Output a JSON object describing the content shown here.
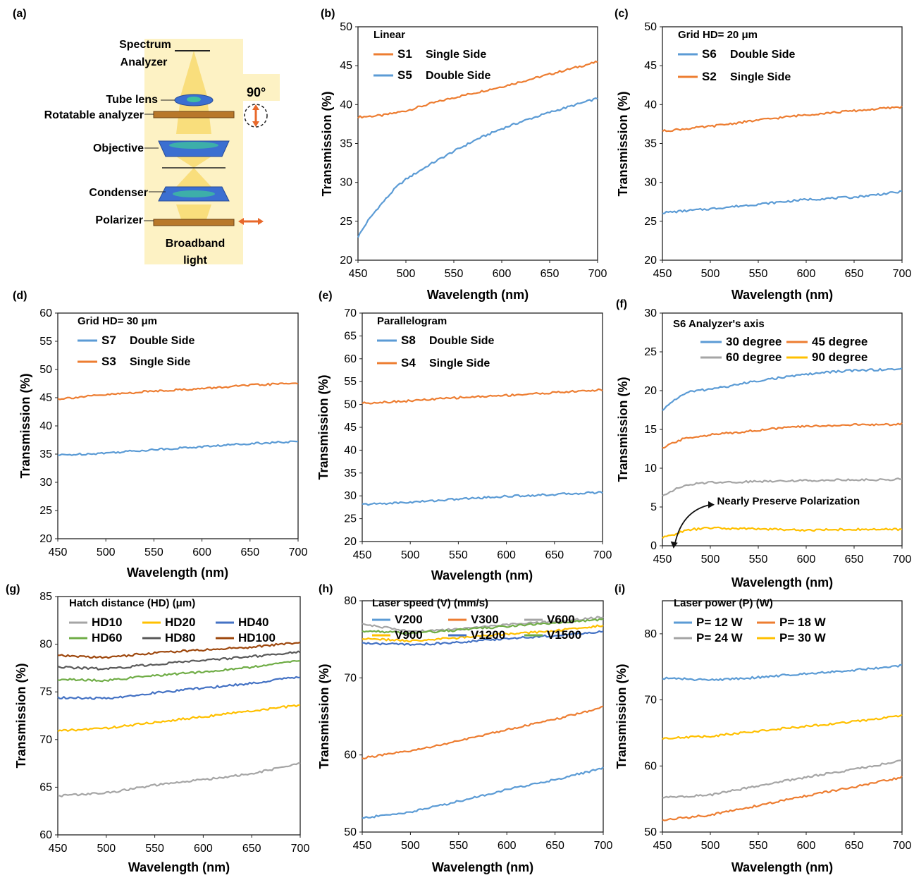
{
  "colors": {
    "blue": "#5b9bd5",
    "orange": "#ed7d31",
    "gray": "#a5a5a5",
    "yellow": "#ffc000",
    "darkblue": "#4472c4",
    "green": "#70ad47",
    "darkgray": "#595959",
    "brown": "#9e480e"
  },
  "panel_labels": [
    "(a)",
    "(b)",
    "(c)",
    "(d)",
    "(e)",
    "(f)",
    "(g)",
    "(h)",
    "(i)"
  ],
  "setup": {
    "labels": {
      "spectrum_analyzer_1": "Spectrum",
      "spectrum_analyzer_2": "Analyzer",
      "tube_lens": "Tube lens",
      "rotatable_analyzer": "Rotatable analyzer",
      "objective": "Objective",
      "condenser": "Condenser",
      "polarizer": "Polarizer",
      "light_1": "Broadband",
      "light_2": "light",
      "angle": "90°"
    },
    "icons": [
      "lens-icon",
      "double-arrow-icon",
      "horizontal-arrow-icon"
    ]
  },
  "chart_data": [
    {
      "panel": "(b)",
      "type": "line",
      "title": "",
      "xlabel": "Wavelength (nm)",
      "ylabel": "Transmission (%)",
      "xlim": [
        450,
        700
      ],
      "ylim": [
        20,
        50
      ],
      "xticks": [
        450,
        500,
        550,
        600,
        650,
        700
      ],
      "yticks": [
        20,
        25,
        30,
        35,
        40,
        45,
        50
      ],
      "legend_title": "Linear",
      "series": [
        {
          "name": "S1",
          "desc": "Single Side",
          "color": "#ed7d31",
          "x": [
            450,
            475,
            500,
            525,
            550,
            575,
            600,
            625,
            650,
            675,
            700
          ],
          "values": [
            38.4,
            38.6,
            39.2,
            40.1,
            40.9,
            41.6,
            42.3,
            43.1,
            43.9,
            44.7,
            45.5
          ]
        },
        {
          "name": "S5",
          "desc": "Double Side",
          "color": "#5b9bd5",
          "x": [
            450,
            460,
            470,
            480,
            490,
            500,
            525,
            550,
            575,
            600,
            625,
            650,
            675,
            700
          ],
          "values": [
            23.0,
            25.0,
            26.6,
            28.0,
            29.4,
            30.4,
            32.3,
            34.0,
            35.6,
            36.9,
            38.0,
            39.0,
            39.9,
            40.8
          ]
        }
      ]
    },
    {
      "panel": "(c)",
      "type": "line",
      "title": "",
      "xlabel": "Wavelength (nm)",
      "ylabel": "Transmission (%)",
      "xlim": [
        450,
        700
      ],
      "ylim": [
        20,
        50
      ],
      "xticks": [
        450,
        500,
        550,
        600,
        650,
        700
      ],
      "yticks": [
        20,
        25,
        30,
        35,
        40,
        45,
        50
      ],
      "legend_title": "Grid HD= 20 μm",
      "series": [
        {
          "name": "S6",
          "desc": "Double Side",
          "color": "#5b9bd5",
          "x": [
            450,
            500,
            550,
            600,
            650,
            700
          ],
          "values": [
            26.1,
            26.6,
            27.2,
            27.8,
            28.1,
            28.8
          ]
        },
        {
          "name": "S2",
          "desc": "Single Side",
          "color": "#ed7d31",
          "x": [
            450,
            500,
            550,
            600,
            650,
            700
          ],
          "values": [
            36.6,
            37.2,
            38.0,
            38.7,
            39.2,
            39.7
          ]
        }
      ]
    },
    {
      "panel": "(d)",
      "type": "line",
      "title": "",
      "xlabel": "Wavelength (nm)",
      "ylabel": "Transmission (%)",
      "xlim": [
        450,
        700
      ],
      "ylim": [
        20,
        60
      ],
      "xticks": [
        450,
        500,
        550,
        600,
        650,
        700
      ],
      "yticks": [
        20,
        25,
        30,
        35,
        40,
        45,
        50,
        55,
        60
      ],
      "legend_title": "Grid HD= 30 μm",
      "series": [
        {
          "name": "S7",
          "desc": "Double Side",
          "color": "#5b9bd5",
          "x": [
            450,
            500,
            550,
            600,
            650,
            700
          ],
          "values": [
            34.8,
            35.2,
            35.8,
            36.3,
            36.9,
            37.2
          ]
        },
        {
          "name": "S3",
          "desc": "Single Side",
          "color": "#ed7d31",
          "x": [
            450,
            500,
            550,
            600,
            650,
            700
          ],
          "values": [
            44.8,
            45.5,
            46.2,
            46.6,
            47.2,
            47.6
          ]
        }
      ]
    },
    {
      "panel": "(e)",
      "type": "line",
      "title": "",
      "xlabel": "Wavelength (nm)",
      "ylabel": "Transmission (%)",
      "xlim": [
        450,
        700
      ],
      "ylim": [
        20,
        70
      ],
      "xticks": [
        450,
        500,
        550,
        600,
        650,
        700
      ],
      "yticks": [
        20,
        25,
        30,
        35,
        40,
        45,
        50,
        55,
        60,
        65,
        70
      ],
      "legend_title": "Parallelogram",
      "series": [
        {
          "name": "S8",
          "desc": "Double Side",
          "color": "#5b9bd5",
          "x": [
            450,
            500,
            550,
            600,
            650,
            700
          ],
          "values": [
            28.1,
            28.6,
            29.3,
            29.9,
            30.3,
            30.8
          ]
        },
        {
          "name": "S4",
          "desc": "Single Side",
          "color": "#ed7d31",
          "x": [
            450,
            500,
            550,
            600,
            650,
            700
          ],
          "values": [
            50.3,
            50.8,
            51.5,
            52.0,
            52.6,
            53.2
          ]
        }
      ]
    },
    {
      "panel": "(f)",
      "type": "line",
      "title": "",
      "xlabel": "Wavelength (nm)",
      "ylabel": "Transmission (%)",
      "xlim": [
        450,
        700
      ],
      "ylim": [
        0,
        30
      ],
      "xticks": [
        450,
        500,
        550,
        600,
        650,
        700
      ],
      "yticks": [
        0,
        5,
        10,
        15,
        20,
        25,
        30
      ],
      "legend_title": "S6    Analyzer's axis",
      "annotation": "Nearly Preserve Polarization",
      "series": [
        {
          "name": "30 degree",
          "color": "#5b9bd5",
          "x": [
            450,
            460,
            470,
            480,
            500,
            525,
            550,
            575,
            600,
            625,
            650,
            675,
            700
          ],
          "values": [
            17.4,
            18.6,
            19.4,
            19.9,
            20.2,
            20.7,
            21.3,
            21.7,
            22.1,
            22.4,
            22.6,
            22.7,
            22.8
          ]
        },
        {
          "name": "45 degree",
          "color": "#ed7d31",
          "x": [
            450,
            460,
            470,
            480,
            500,
            525,
            550,
            575,
            600,
            625,
            650,
            675,
            700
          ],
          "values": [
            12.5,
            13.2,
            13.7,
            14.0,
            14.3,
            14.6,
            14.9,
            15.2,
            15.4,
            15.5,
            15.6,
            15.6,
            15.7
          ]
        },
        {
          "name": "60 degree",
          "color": "#a5a5a5",
          "x": [
            450,
            460,
            470,
            480,
            500,
            525,
            550,
            575,
            600,
            625,
            650,
            675,
            700
          ],
          "values": [
            6.5,
            7.1,
            7.6,
            7.9,
            8.2,
            8.2,
            8.3,
            8.4,
            8.4,
            8.5,
            8.5,
            8.5,
            8.6
          ]
        },
        {
          "name": "90 degree",
          "color": "#ffc000",
          "x": [
            450,
            460,
            470,
            480,
            500,
            525,
            550,
            575,
            600,
            625,
            650,
            675,
            700
          ],
          "values": [
            1.0,
            1.4,
            1.8,
            2.1,
            2.3,
            2.2,
            2.2,
            2.1,
            2.0,
            2.1,
            2.1,
            2.1,
            2.1
          ]
        }
      ]
    },
    {
      "panel": "(g)",
      "type": "line",
      "title": "",
      "xlabel": "Wavelength (nm)",
      "ylabel": "Transmission (%)",
      "xlim": [
        450,
        700
      ],
      "ylim": [
        60,
        85
      ],
      "xticks": [
        450,
        500,
        550,
        600,
        650,
        700
      ],
      "yticks": [
        60,
        65,
        70,
        75,
        80,
        85
      ],
      "legend_title": "Hatch distance (HD) (μm)",
      "series": [
        {
          "name": "HD10",
          "color": "#a5a5a5",
          "x": [
            450,
            500,
            550,
            600,
            650,
            700
          ],
          "values": [
            64.1,
            64.4,
            65.2,
            65.8,
            66.4,
            67.5
          ]
        },
        {
          "name": "HD20",
          "color": "#ffc000",
          "x": [
            450,
            500,
            550,
            600,
            650,
            700
          ],
          "values": [
            70.9,
            71.2,
            71.8,
            72.4,
            73.0,
            73.6
          ]
        },
        {
          "name": "HD40",
          "color": "#4472c4",
          "x": [
            450,
            500,
            550,
            600,
            650,
            700
          ],
          "values": [
            74.4,
            74.3,
            74.9,
            75.4,
            75.9,
            76.6
          ]
        },
        {
          "name": "HD60",
          "color": "#70ad47",
          "x": [
            450,
            500,
            550,
            600,
            650,
            700
          ],
          "values": [
            76.3,
            76.2,
            76.7,
            77.1,
            77.6,
            78.3
          ]
        },
        {
          "name": "HD80",
          "color": "#595959",
          "x": [
            450,
            500,
            550,
            600,
            650,
            700
          ],
          "values": [
            77.6,
            77.4,
            77.9,
            78.3,
            78.7,
            79.2
          ]
        },
        {
          "name": "HD100",
          "color": "#9e480e",
          "x": [
            450,
            500,
            550,
            600,
            650,
            700
          ],
          "values": [
            78.8,
            78.6,
            79.1,
            79.4,
            79.7,
            80.2
          ]
        }
      ]
    },
    {
      "panel": "(h)",
      "type": "line",
      "title": "",
      "xlabel": "Wavelength (nm)",
      "ylabel": "Transmission (%)",
      "xlim": [
        450,
        700
      ],
      "ylim": [
        50,
        80
      ],
      "xticks": [
        450,
        500,
        550,
        600,
        650,
        700
      ],
      "yticks": [
        50,
        60,
        70,
        80
      ],
      "legend_title": "Laser speed (V) (mm/s)",
      "series": [
        {
          "name": "V200",
          "color": "#5b9bd5",
          "x": [
            450,
            500,
            550,
            600,
            650,
            700
          ],
          "values": [
            51.8,
            52.6,
            54.0,
            55.5,
            56.8,
            58.3
          ]
        },
        {
          "name": "V300",
          "color": "#ed7d31",
          "x": [
            450,
            500,
            550,
            600,
            650,
            700
          ],
          "values": [
            59.6,
            60.5,
            61.8,
            63.3,
            64.6,
            66.2
          ]
        },
        {
          "name": "V600",
          "color": "#a5a5a5",
          "x": [
            450,
            500,
            550,
            600,
            650,
            700
          ],
          "values": [
            77.0,
            76.0,
            76.3,
            76.9,
            77.3,
            77.9
          ]
        },
        {
          "name": "V900",
          "color": "#ffc000",
          "x": [
            450,
            500,
            550,
            600,
            650,
            700
          ],
          "values": [
            75.1,
            74.8,
            75.2,
            75.7,
            76.1,
            76.8
          ]
        },
        {
          "name": "V1200",
          "color": "#4472c4",
          "x": [
            450,
            500,
            550,
            600,
            650,
            700
          ],
          "values": [
            74.5,
            74.3,
            74.6,
            75.1,
            75.5,
            76.0
          ]
        },
        {
          "name": "V1500",
          "color": "#70ad47",
          "x": [
            450,
            500,
            550,
            600,
            650,
            700
          ],
          "values": [
            76.1,
            75.8,
            76.2,
            76.7,
            77.1,
            77.6
          ]
        }
      ]
    },
    {
      "panel": "(i)",
      "type": "line",
      "title": "",
      "xlabel": "Wavelength (nm)",
      "ylabel": "Transmission (%)",
      "xlim": [
        450,
        700
      ],
      "ylim": [
        50,
        85
      ],
      "xticks": [
        450,
        500,
        550,
        600,
        650,
        700
      ],
      "yticks": [
        50,
        60,
        70,
        80
      ],
      "legend_title": "Laser power (P) (W)",
      "series": [
        {
          "name": "P= 12 W",
          "color": "#5b9bd5",
          "x": [
            450,
            500,
            550,
            600,
            650,
            700
          ],
          "values": [
            73.3,
            73.0,
            73.4,
            74.0,
            74.5,
            75.2
          ]
        },
        {
          "name": "P= 18 W",
          "color": "#ed7d31",
          "x": [
            450,
            500,
            550,
            600,
            650,
            700
          ],
          "values": [
            51.8,
            52.6,
            54.0,
            55.5,
            56.8,
            58.3
          ]
        },
        {
          "name": "P= 24 W",
          "color": "#a5a5a5",
          "x": [
            450,
            500,
            550,
            600,
            650,
            700
          ],
          "values": [
            55.2,
            55.6,
            57.0,
            58.3,
            59.5,
            60.8
          ]
        },
        {
          "name": "P= 30 W",
          "color": "#ffc000",
          "x": [
            450,
            500,
            550,
            600,
            650,
            700
          ],
          "values": [
            64.2,
            64.5,
            65.3,
            66.0,
            66.7,
            67.6
          ]
        }
      ]
    }
  ]
}
